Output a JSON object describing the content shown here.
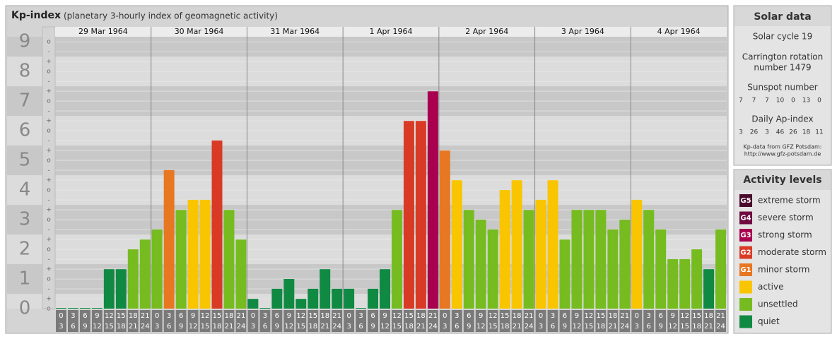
{
  "chart_data": {
    "type": "bar",
    "title": "Kp-index",
    "subtitle": "(planetary 3-hourly index of geomagnetic activity)",
    "days": [
      "29 Mar 1964",
      "30 Mar 1964",
      "31 Mar 1964",
      "1 Apr 1964",
      "2 Apr 1964",
      "3 Apr 1964",
      "4 Apr 1964"
    ],
    "hour_ranges": [
      [
        0,
        3
      ],
      [
        3,
        6
      ],
      [
        6,
        9
      ],
      [
        9,
        12
      ],
      [
        12,
        15
      ],
      [
        15,
        18
      ],
      [
        18,
        21
      ],
      [
        21,
        24
      ]
    ],
    "ylim": [
      0,
      9.17
    ],
    "yticks": [
      0,
      1,
      2,
      3,
      4,
      5,
      6,
      7,
      8,
      9
    ],
    "minor_labels": [
      "-",
      "o",
      "+"
    ],
    "values": [
      0,
      0,
      0,
      0,
      1.33,
      1.33,
      2.0,
      2.33,
      2.67,
      4.67,
      3.33,
      3.67,
      3.67,
      5.67,
      3.33,
      2.33,
      0.33,
      0,
      0.67,
      1.0,
      0.33,
      0.67,
      1.33,
      0.67,
      0.67,
      0,
      0.67,
      1.33,
      3.33,
      6.33,
      6.33,
      7.33,
      5.33,
      4.33,
      3.33,
      3.0,
      2.67,
      4.0,
      4.33,
      3.33,
      3.67,
      4.33,
      2.33,
      3.33,
      3.33,
      3.33,
      2.67,
      3.0,
      3.67,
      3.33,
      2.67,
      1.67,
      1.67,
      2.0,
      1.33,
      2.67
    ],
    "colors": [
      "#108a43",
      "#108a43",
      "#108a43",
      "#108a43",
      "#108a43",
      "#108a43",
      "#76bc21",
      "#76bc21",
      "#76bc21",
      "#e87722",
      "#76bc21",
      "#f8c500",
      "#f8c500",
      "#d93a26",
      "#76bc21",
      "#76bc21",
      "#108a43",
      "#108a43",
      "#108a43",
      "#108a43",
      "#108a43",
      "#108a43",
      "#108a43",
      "#108a43",
      "#108a43",
      "#108a43",
      "#108a43",
      "#108a43",
      "#76bc21",
      "#d93a26",
      "#d93a26",
      "#a8004f",
      "#e87722",
      "#f8c500",
      "#76bc21",
      "#76bc21",
      "#76bc21",
      "#f8c500",
      "#f8c500",
      "#76bc21",
      "#f8c500",
      "#f8c500",
      "#76bc21",
      "#76bc21",
      "#76bc21",
      "#76bc21",
      "#76bc21",
      "#76bc21",
      "#f8c500",
      "#76bc21",
      "#76bc21",
      "#76bc21",
      "#76bc21",
      "#76bc21",
      "#108a43",
      "#76bc21"
    ],
    "solar": {
      "title": "Solar data",
      "cycle": "Solar cycle 19",
      "carrington": [
        "Carrington rotation",
        "number 1479"
      ],
      "sunspot_label": "Sunspot number",
      "sunspot": [
        7,
        7,
        7,
        10,
        0,
        13,
        0
      ],
      "ap_label": "Daily Ap-index",
      "ap": [
        3,
        26,
        3,
        46,
        26,
        18,
        11
      ],
      "source": [
        "Kp-data from GFZ Potsdam:",
        "http://www.gfz-potsdam.de"
      ]
    },
    "legend": {
      "title": "Activity levels",
      "items": [
        {
          "code": "G5",
          "label": "extreme storm",
          "color": "#4a0a2c"
        },
        {
          "code": "G4",
          "label": "severe storm",
          "color": "#6e0a40"
        },
        {
          "code": "G3",
          "label": "strong storm",
          "color": "#a8004f"
        },
        {
          "code": "G2",
          "label": "moderate storm",
          "color": "#d93a26"
        },
        {
          "code": "G1",
          "label": "minor storm",
          "color": "#e87722"
        },
        {
          "label": "active",
          "color": "#f8c500"
        },
        {
          "label": "unsettled",
          "color": "#76bc21"
        },
        {
          "label": "quiet",
          "color": "#108a43"
        }
      ]
    }
  }
}
